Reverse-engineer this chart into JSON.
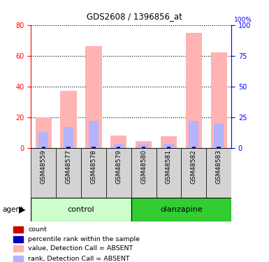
{
  "title": "GDS2608 / 1396856_at",
  "samples": [
    "GSM48559",
    "GSM48577",
    "GSM48578",
    "GSM48579",
    "GSM48580",
    "GSM48581",
    "GSM48582",
    "GSM48583"
  ],
  "value_absent": [
    20,
    37,
    66,
    8,
    4.5,
    7.5,
    75,
    62
  ],
  "rank_absent": [
    13,
    17,
    22,
    3.5,
    2.5,
    3.5,
    22,
    20
  ],
  "count_val": [
    1,
    1,
    1,
    1,
    1,
    1,
    1,
    1
  ],
  "percentile_val": [
    1,
    1,
    1,
    1,
    1,
    1,
    1,
    1
  ],
  "ylim_left": [
    0,
    80
  ],
  "ylim_right": [
    0,
    100
  ],
  "yticks_left": [
    0,
    20,
    40,
    60,
    80
  ],
  "yticks_right": [
    0,
    25,
    50,
    75,
    100
  ],
  "color_value_absent": "#ffb3b3",
  "color_rank_absent": "#b3b3ff",
  "color_count": "#cc0000",
  "color_percentile": "#0000bb",
  "legend_items": [
    {
      "label": "count",
      "color": "#cc0000"
    },
    {
      "label": "percentile rank within the sample",
      "color": "#0000bb"
    },
    {
      "label": "value, Detection Call = ABSENT",
      "color": "#ffb3b3"
    },
    {
      "label": "rank, Detection Call = ABSENT",
      "color": "#b3b3ff"
    }
  ],
  "control_color": "#ccffcc",
  "olanzapine_color": "#33cc33",
  "sample_bg": "#d3d3d3"
}
